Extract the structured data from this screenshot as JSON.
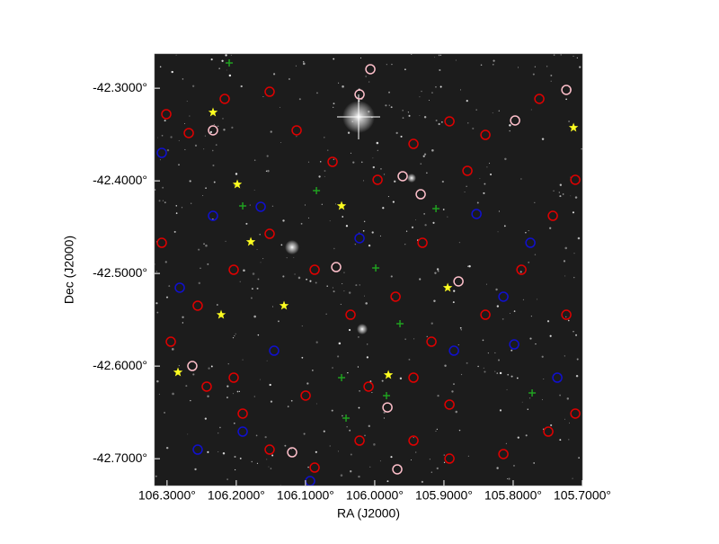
{
  "chart_data": {
    "type": "scatter",
    "xlabel": "RA (J2000)",
    "ylabel": "Dec (J2000)",
    "xlim": [
      106.318,
      105.7
    ],
    "ylim": [
      -42.729,
      -42.263
    ],
    "xticks": [
      {
        "value": 106.3,
        "label": "106.3000°"
      },
      {
        "value": 106.2,
        "label": "106.2000°"
      },
      {
        "value": 106.1,
        "label": "106.1000°"
      },
      {
        "value": 106.0,
        "label": "106.0000°"
      },
      {
        "value": 105.9,
        "label": "105.9000°"
      },
      {
        "value": 105.8,
        "label": "105.8000°"
      },
      {
        "value": 105.7,
        "label": "105.7000°"
      }
    ],
    "yticks": [
      {
        "value": -42.3,
        "label": "-42.3000°"
      },
      {
        "value": -42.4,
        "label": "-42.4000°"
      },
      {
        "value": -42.5,
        "label": "-42.5000°"
      },
      {
        "value": -42.6,
        "label": "-42.6000°"
      },
      {
        "value": -42.7,
        "label": "-42.7000°"
      }
    ],
    "series": [
      {
        "color": "#e00000",
        "marker": "circle",
        "x": [
          106.3011,
          106.2686,
          106.2167,
          106.1518,
          106.1128,
          106.0609,
          105.9959,
          105.944,
          105.892,
          105.8401,
          105.7622,
          105.7102,
          105.7427,
          105.7881,
          105.8401,
          105.918,
          105.9699,
          106.0349,
          106.0868,
          106.1518,
          106.2037,
          106.2557,
          106.2946,
          106.2427,
          106.1907,
          106.1518,
          106.0868,
          106.0219,
          105.944,
          105.892,
          105.8141,
          105.7492,
          105.7102,
          105.892,
          105.944,
          106.0998,
          106.2037,
          106.0089,
          105.931,
          105.8661,
          106.3076,
          105.7232
        ],
        "values": [
          -42.328,
          -42.3484,
          -42.3115,
          -42.3038,
          -42.3455,
          -42.3795,
          -42.3989,
          -42.3601,
          -42.3358,
          -42.3504,
          -42.3115,
          -42.3989,
          -42.4378,
          -42.496,
          -42.5446,
          -42.5737,
          -42.5251,
          -42.5446,
          -42.496,
          -42.4572,
          -42.496,
          -42.5348,
          -42.5737,
          -42.6222,
          -42.6513,
          -42.6902,
          -42.7096,
          -42.6805,
          -42.6805,
          -42.6999,
          -42.695,
          -42.6708,
          -42.6513,
          -42.6416,
          -42.6125,
          -42.6319,
          -42.6125,
          -42.6222,
          -42.4669,
          -42.3892,
          -42.4669,
          -42.5446
        ]
      },
      {
        "color": "#ffc0cb",
        "marker": "circle",
        "x": [
          106.0219,
          106.0063,
          106.2336,
          105.9336,
          106.0557,
          106.2635,
          106.1193,
          105.9674,
          105.9816,
          105.7972,
          105.7232,
          105.879,
          105.9596
        ],
        "values": [
          -42.3067,
          -42.2795,
          -42.3455,
          -42.4145,
          -42.4931,
          -42.5999,
          -42.6931,
          -42.7115,
          -42.6446,
          -42.3348,
          -42.3018,
          -42.5086,
          -42.395
        ]
      },
      {
        "color": "#1010d0",
        "marker": "circle",
        "x": [
          106.2336,
          106.1647,
          106.3076,
          106.2816,
          106.2557,
          106.1907,
          106.1453,
          106.0933,
          106.0219,
          105.8855,
          105.853,
          105.7751,
          105.8141,
          105.7362,
          105.7985
        ],
        "values": [
          -42.4378,
          -42.428,
          -42.3698,
          -42.5154,
          -42.6902,
          -42.6708,
          -42.5834,
          -42.7242,
          -42.462,
          -42.5834,
          -42.4358,
          -42.4669,
          -42.5251,
          -42.6125,
          -42.5766
        ]
      },
      {
        "color": "#20a020",
        "marker": "plus",
        "x": [
          106.2102,
          106.0842,
          106.1907,
          105.9985,
          105.9635,
          106.0479,
          105.983,
          105.7726,
          106.0414,
          105.9115
        ],
        "values": [
          -42.2727,
          -42.4106,
          -42.4271,
          -42.4941,
          -42.5543,
          -42.6125,
          -42.6319,
          -42.629,
          -42.6562,
          -42.43
        ]
      },
      {
        "color": "#ffff20",
        "marker": "star",
        "x": [
          106.2336,
          106.1985,
          106.179,
          106.0479,
          106.131,
          106.2219,
          106.2842,
          105.9803,
          105.8946,
          105.7128
        ],
        "values": [
          -42.3261,
          -42.4038,
          -42.4659,
          -42.4271,
          -42.5348,
          -42.5446,
          -42.6067,
          -42.6096,
          -42.5154,
          -42.3426
        ]
      }
    ]
  }
}
